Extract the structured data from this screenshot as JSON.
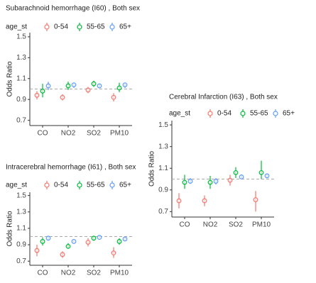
{
  "chart_data": [
    {
      "type": "errorbar",
      "title": "Subarachnoid hemorrhage (I60) , Both sex",
      "y_label": "Odds Ratio",
      "legend_title": "age_st",
      "categories": [
        "CO",
        "NO2",
        "SO2",
        "PM10"
      ],
      "ylim": [
        0.65,
        1.54
      ],
      "yticks": [
        0.7,
        0.9,
        1.1,
        1.3,
        1.5
      ],
      "reference_line": 1,
      "series": [
        {
          "name": "0-54",
          "color": "#F8766D",
          "values": [
            0.94,
            0.92,
            0.99,
            0.92
          ],
          "lower": [
            0.9,
            0.89,
            0.96,
            0.88
          ],
          "upper": [
            0.98,
            0.95,
            1.02,
            0.96
          ]
        },
        {
          "name": "55-65",
          "color": "#00BA38",
          "values": [
            0.98,
            1.03,
            1.05,
            1.01
          ],
          "lower": [
            0.92,
            0.99,
            1.02,
            0.97
          ],
          "upper": [
            1.05,
            1.07,
            1.08,
            1.06
          ]
        },
        {
          "name": "65+",
          "color": "#619CFF",
          "values": [
            1.03,
            1.04,
            1.03,
            1.04
          ],
          "lower": [
            0.99,
            1.01,
            1.01,
            1.01
          ],
          "upper": [
            1.07,
            1.06,
            1.05,
            1.06
          ]
        }
      ]
    },
    {
      "type": "errorbar",
      "title": "Intracerebral hemorrhage (I61) , Both sex",
      "y_label": "Odds Ratio",
      "legend_title": "age_st",
      "categories": [
        "CO",
        "NO2",
        "SO2",
        "PM10"
      ],
      "ylim": [
        0.65,
        1.54
      ],
      "yticks": [
        0.7,
        0.9,
        1.1,
        1.3,
        1.5
      ],
      "reference_line": 1,
      "series": [
        {
          "name": "0-54",
          "color": "#F8766D",
          "values": [
            0.83,
            0.78,
            0.93,
            0.8
          ],
          "lower": [
            0.76,
            0.74,
            0.88,
            0.74
          ],
          "upper": [
            0.9,
            0.82,
            0.98,
            0.87
          ]
        },
        {
          "name": "55-65",
          "color": "#00BA38",
          "values": [
            0.94,
            0.88,
            0.98,
            0.94
          ],
          "lower": [
            0.89,
            0.85,
            0.95,
            0.9
          ],
          "upper": [
            0.99,
            0.92,
            1.01,
            0.98
          ]
        },
        {
          "name": "65+",
          "color": "#619CFF",
          "values": [
            0.98,
            0.94,
            0.99,
            0.97
          ],
          "lower": [
            0.95,
            0.93,
            0.98,
            0.95
          ],
          "upper": [
            1.01,
            0.95,
            1.01,
            0.99
          ]
        }
      ]
    },
    {
      "type": "errorbar",
      "title": "Cerebral Infarction (I63) , Both sex",
      "y_label": "Odds Ratio",
      "legend_title": "age_st",
      "categories": [
        "CO",
        "NO2",
        "SO2",
        "PM10"
      ],
      "ylim": [
        0.65,
        1.54
      ],
      "yticks": [
        0.7,
        0.9,
        1.1,
        1.3,
        1.5
      ],
      "reference_line": 1,
      "series": [
        {
          "name": "0-54",
          "color": "#F8766D",
          "values": [
            0.8,
            0.8,
            0.99,
            0.81
          ],
          "lower": [
            0.73,
            0.75,
            0.94,
            0.7
          ],
          "upper": [
            0.87,
            0.85,
            1.04,
            0.89
          ]
        },
        {
          "name": "55-65",
          "color": "#00BA38",
          "values": [
            0.97,
            0.97,
            1.06,
            1.06
          ],
          "lower": [
            0.91,
            0.91,
            1.01,
            1.0
          ],
          "upper": [
            1.04,
            1.03,
            1.11,
            1.17
          ]
        },
        {
          "name": "65+",
          "color": "#619CFF",
          "values": [
            0.98,
            0.98,
            1.02,
            1.03
          ],
          "lower": [
            0.96,
            0.95,
            1.01,
            1.01
          ],
          "upper": [
            1.01,
            1.01,
            1.04,
            1.05
          ]
        }
      ]
    }
  ]
}
